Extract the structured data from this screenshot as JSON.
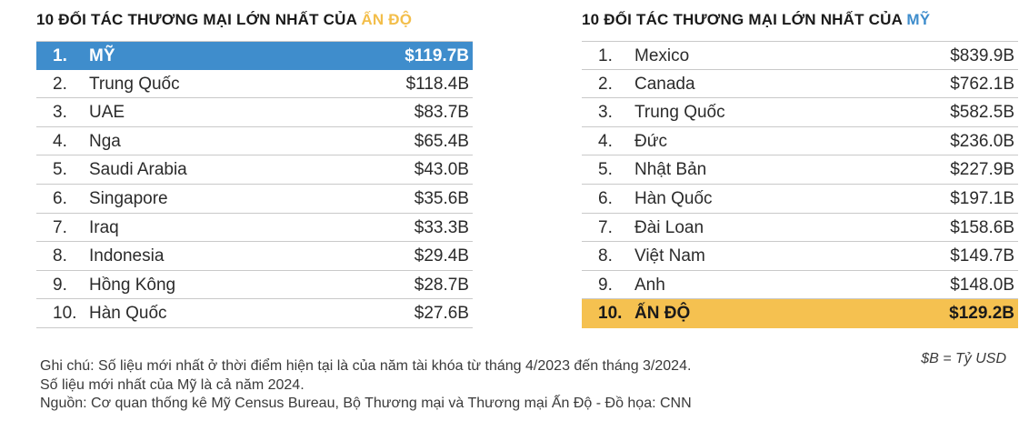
{
  "chart_data": [
    {
      "type": "table",
      "title_prefix": "10 ĐỐI TÁC THƯƠNG MẠI LỚN NHẤT CỦA ",
      "title_accent": "ẤN ĐỘ",
      "accent_color": "#f3be4a",
      "highlight_color": "#3f8dcc",
      "highlight_index": 0,
      "rows": [
        {
          "rank": "1.",
          "name": "MỸ",
          "value": "$119.7B"
        },
        {
          "rank": "2.",
          "name": "Trung Quốc",
          "value": "$118.4B"
        },
        {
          "rank": "3.",
          "name": "UAE",
          "value": "$83.7B"
        },
        {
          "rank": "4.",
          "name": "Nga",
          "value": "$65.4B"
        },
        {
          "rank": "5.",
          "name": "Saudi Arabia",
          "value": "$43.0B"
        },
        {
          "rank": "6.",
          "name": "Singapore",
          "value": "$35.6B"
        },
        {
          "rank": "7.",
          "name": "Iraq",
          "value": "$33.3B"
        },
        {
          "rank": "8.",
          "name": "Indonesia",
          "value": "$29.4B"
        },
        {
          "rank": "9.",
          "name": "Hồng Kông",
          "value": "$28.7B"
        },
        {
          "rank": "10.",
          "name": "Hàn Quốc",
          "value": "$27.6B"
        }
      ]
    },
    {
      "type": "table",
      "title_prefix": "10 ĐỐI TÁC THƯƠNG MẠI LỚN NHẤT CỦA ",
      "title_accent": "MỸ",
      "accent_color": "#3f8dcc",
      "highlight_color": "#f5c150",
      "highlight_index": 9,
      "rows": [
        {
          "rank": "1.",
          "name": "Mexico",
          "value": "$839.9B"
        },
        {
          "rank": "2.",
          "name": "Canada",
          "value": "$762.1B"
        },
        {
          "rank": "3.",
          "name": "Trung Quốc",
          "value": "$582.5B"
        },
        {
          "rank": "4.",
          "name": "Đức",
          "value": "$236.0B"
        },
        {
          "rank": "5.",
          "name": "Nhật Bản",
          "value": "$227.9B"
        },
        {
          "rank": "6.",
          "name": "Hàn Quốc",
          "value": "$197.1B"
        },
        {
          "rank": "7.",
          "name": "Đài Loan",
          "value": "$158.6B"
        },
        {
          "rank": "8.",
          "name": "Việt Nam",
          "value": "$149.7B"
        },
        {
          "rank": "9.",
          "name": "Anh",
          "value": "$148.0B"
        },
        {
          "rank": "10.",
          "name": "ẤN ĐỘ",
          "value": "$129.2B"
        }
      ]
    }
  ],
  "unit_label": "$B = Tỷ USD",
  "notes": {
    "line1": "Ghi chú: Số liệu mới nhất ở thời điểm hiện tại là của năm tài khóa từ tháng 4/2023 đến tháng 3/2024.",
    "line2": "Số liệu mới nhất của Mỹ là cả năm 2024.",
    "line3": "Nguồn: Cơ quan thống kê Mỹ Census Bureau, Bộ Thương mại và Thương mại Ấn Độ - Đồ họa: CNN"
  }
}
